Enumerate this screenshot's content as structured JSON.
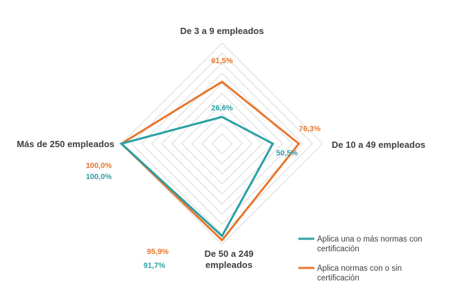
{
  "chart_data": {
    "type": "radar",
    "categories": [
      "De 3 a 9 empleados",
      "De 10 a 49 empleados",
      "De 50 a 249 empleados",
      "Más de 250 empleados"
    ],
    "series": [
      {
        "name": "Aplica una o más normas con certificación",
        "values": [
          26.6,
          50.5,
          91.7,
          100.0
        ],
        "labels": [
          "26,6%",
          "50,5%",
          "91,7%",
          "100,0%"
        ],
        "color": "#2aa0a4"
      },
      {
        "name": "Aplica normas con o sin certificación",
        "values": [
          61.5,
          76.3,
          95.9,
          100.0
        ],
        "labels": [
          "61,5%",
          "76,3%",
          "95,9%",
          "100,0%"
        ],
        "color": "#e8762b"
      }
    ],
    "rmax": 100,
    "grid": true,
    "grid_color": "#d9d9d9",
    "legend_position": "bottom-right"
  }
}
